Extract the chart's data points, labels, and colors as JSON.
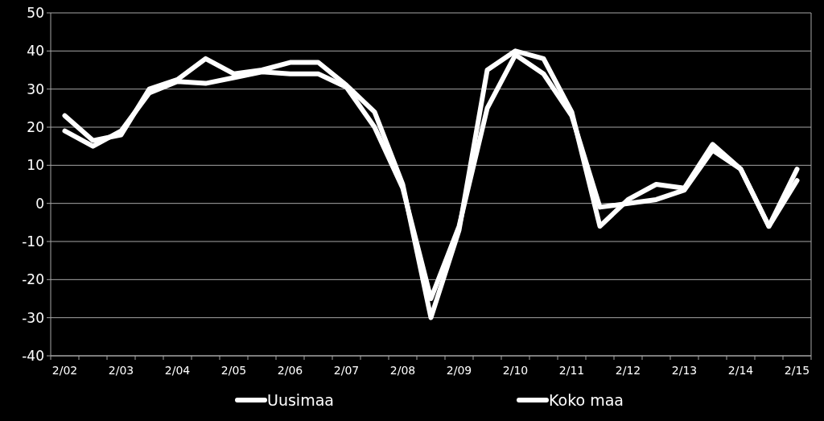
{
  "chart_data": {
    "type": "line",
    "categories": [
      "2/02",
      null,
      "2/03",
      null,
      "2/04",
      null,
      "2/05",
      null,
      "2/06",
      null,
      "2/07",
      null,
      "2/08",
      null,
      "2/09",
      null,
      "2/10",
      null,
      "2/11",
      null,
      "2/12",
      null,
      "2/13",
      null,
      "2/14",
      null,
      "2/15"
    ],
    "series": [
      {
        "name": "Uusimaa",
        "color": "#ffffff",
        "values": [
          23,
          16.5,
          18,
          30,
          32.5,
          38,
          34,
          35,
          37,
          37,
          31,
          24,
          5,
          -30,
          -7,
          35,
          40,
          38,
          24,
          -6,
          1,
          5,
          4,
          15.5,
          9,
          -6,
          9
        ]
      },
      {
        "name": "Koko maa",
        "color": "#ffffff",
        "values": [
          19,
          15,
          19,
          29,
          32,
          31.5,
          33,
          34.5,
          34,
          34,
          30.5,
          20,
          4,
          -25,
          -6,
          25,
          39,
          34,
          23,
          -1,
          0,
          1,
          3.5,
          14,
          9,
          -6,
          6
        ]
      }
    ],
    "ylim": [
      -40,
      50
    ],
    "yticks": [
      -40,
      -30,
      -20,
      -10,
      0,
      10,
      20,
      30,
      40,
      50
    ],
    "grid": "y",
    "legend": "bottom",
    "marker": "none",
    "line_style": "solid"
  }
}
